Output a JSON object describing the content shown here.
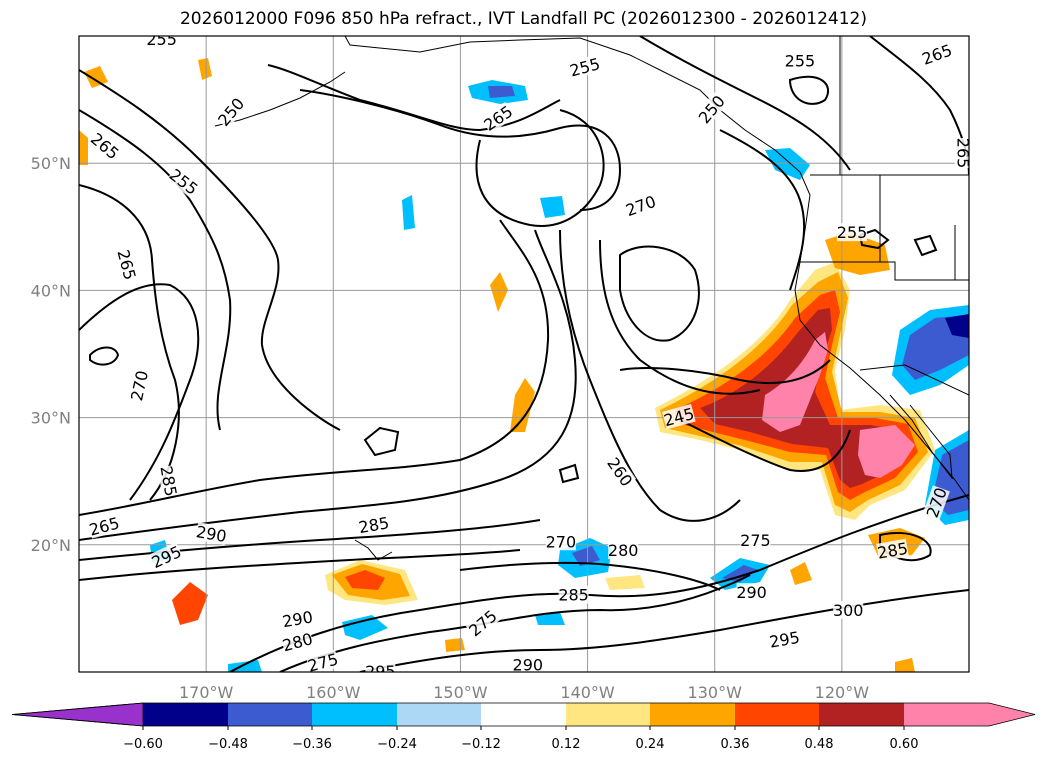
{
  "title": "2026012000 F096 850 hPa refract., IVT Landfall PC (2026012300 - 2026012412)",
  "map": {
    "lon_range": [
      -180,
      -110
    ],
    "lat_range": [
      10,
      60
    ],
    "latitude_labels": [
      {
        "lat": 50,
        "text": "50°N"
      },
      {
        "lat": 40,
        "text": "40°N"
      },
      {
        "lat": 30,
        "text": "30°N"
      },
      {
        "lat": 20,
        "text": "20°N"
      }
    ],
    "longitude_labels": [
      {
        "lon": -170,
        "text": "170°W"
      },
      {
        "lon": -160,
        "text": "160°W"
      },
      {
        "lon": -150,
        "text": "150°W"
      },
      {
        "lon": -140,
        "text": "140°W"
      },
      {
        "lon": -130,
        "text": "130°W"
      },
      {
        "lon": -120,
        "text": "120°W"
      }
    ],
    "grid_color": "#999999",
    "contour_labels": [
      {
        "text": "255",
        "lon": -173.5,
        "lat": 59.7,
        "rot": 0
      },
      {
        "text": "250",
        "lon": -168.0,
        "lat": 54.0,
        "rot": -50
      },
      {
        "text": "265",
        "lon": -178.0,
        "lat": 51.3,
        "rot": 40
      },
      {
        "text": "255",
        "lon": -171.8,
        "lat": 48.5,
        "rot": 38
      },
      {
        "text": "265",
        "lon": -176.3,
        "lat": 42.0,
        "rot": 75
      },
      {
        "text": "270",
        "lon": -175.2,
        "lat": 32.5,
        "rot": -78
      },
      {
        "text": "285",
        "lon": -173.0,
        "lat": 25.0,
        "rot": 80
      },
      {
        "text": "265",
        "lon": -178.0,
        "lat": 21.4,
        "rot": -15
      },
      {
        "text": "290",
        "lon": -169.6,
        "lat": 20.8,
        "rot": 10
      },
      {
        "text": "295",
        "lon": -173.1,
        "lat": 19.0,
        "rot": -25
      },
      {
        "text": "285",
        "lon": -156.8,
        "lat": 21.5,
        "rot": -10
      },
      {
        "text": "290",
        "lon": -162.8,
        "lat": 14.1,
        "rot": -10
      },
      {
        "text": "280",
        "lon": -162.8,
        "lat": 12.3,
        "rot": -15
      },
      {
        "text": "275",
        "lon": -160.8,
        "lat": 10.7,
        "rot": -15
      },
      {
        "text": "295",
        "lon": -156.3,
        "lat": 10.0,
        "rot": 0
      },
      {
        "text": "275",
        "lon": -148.2,
        "lat": 13.8,
        "rot": -40
      },
      {
        "text": "290",
        "lon": -144.7,
        "lat": 10.5,
        "rot": 0
      },
      {
        "text": "285",
        "lon": -141.1,
        "lat": 16.0,
        "rot": 0
      },
      {
        "text": "270",
        "lon": -142.1,
        "lat": 20.2,
        "rot": 0
      },
      {
        "text": "280",
        "lon": -137.2,
        "lat": 19.5,
        "rot": 0
      },
      {
        "text": "260",
        "lon": -137.5,
        "lat": 25.7,
        "rot": 55
      },
      {
        "text": "245",
        "lon": -132.8,
        "lat": 30.0,
        "rot": -15
      },
      {
        "text": "275",
        "lon": -126.8,
        "lat": 20.3,
        "rot": 0
      },
      {
        "text": "290",
        "lon": -127.1,
        "lat": 16.2,
        "rot": 0
      },
      {
        "text": "295",
        "lon": -124.5,
        "lat": 12.5,
        "rot": -10
      },
      {
        "text": "300",
        "lon": -119.5,
        "lat": 14.8,
        "rot": 0
      },
      {
        "text": "285",
        "lon": -116.0,
        "lat": 19.5,
        "rot": -10
      },
      {
        "text": "270",
        "lon": -112.5,
        "lat": 23.3,
        "rot": -70
      },
      {
        "text": "265",
        "lon": -147.0,
        "lat": 53.5,
        "rot": -35
      },
      {
        "text": "255",
        "lon": -140.2,
        "lat": 57.5,
        "rot": -15
      },
      {
        "text": "250",
        "lon": -130.2,
        "lat": 54.2,
        "rot": -50
      },
      {
        "text": "270",
        "lon": -135.8,
        "lat": 46.6,
        "rot": -20
      },
      {
        "text": "255",
        "lon": -123.3,
        "lat": 58.0,
        "rot": 0
      },
      {
        "text": "255",
        "lon": -119.2,
        "lat": 44.5,
        "rot": 0
      },
      {
        "text": "265",
        "lon": -112.5,
        "lat": 58.5,
        "rot": -20
      },
      {
        "text": "265",
        "lon": -110.5,
        "lat": 50.8,
        "rot": 90
      }
    ]
  },
  "colorbar": {
    "ticks": [
      "−0.60",
      "−0.48",
      "−0.36",
      "−0.24",
      "−0.12",
      "0.12",
      "0.24",
      "0.36",
      "0.48",
      "0.60"
    ],
    "colors": [
      "#9932cc",
      "#00008b",
      "#3d5bd1",
      "#00bfff",
      "#add8f5",
      "#ffffff",
      "#ffe680",
      "#ffa500",
      "#ff4500",
      "#b22222",
      "#ff82aa"
    ]
  }
}
